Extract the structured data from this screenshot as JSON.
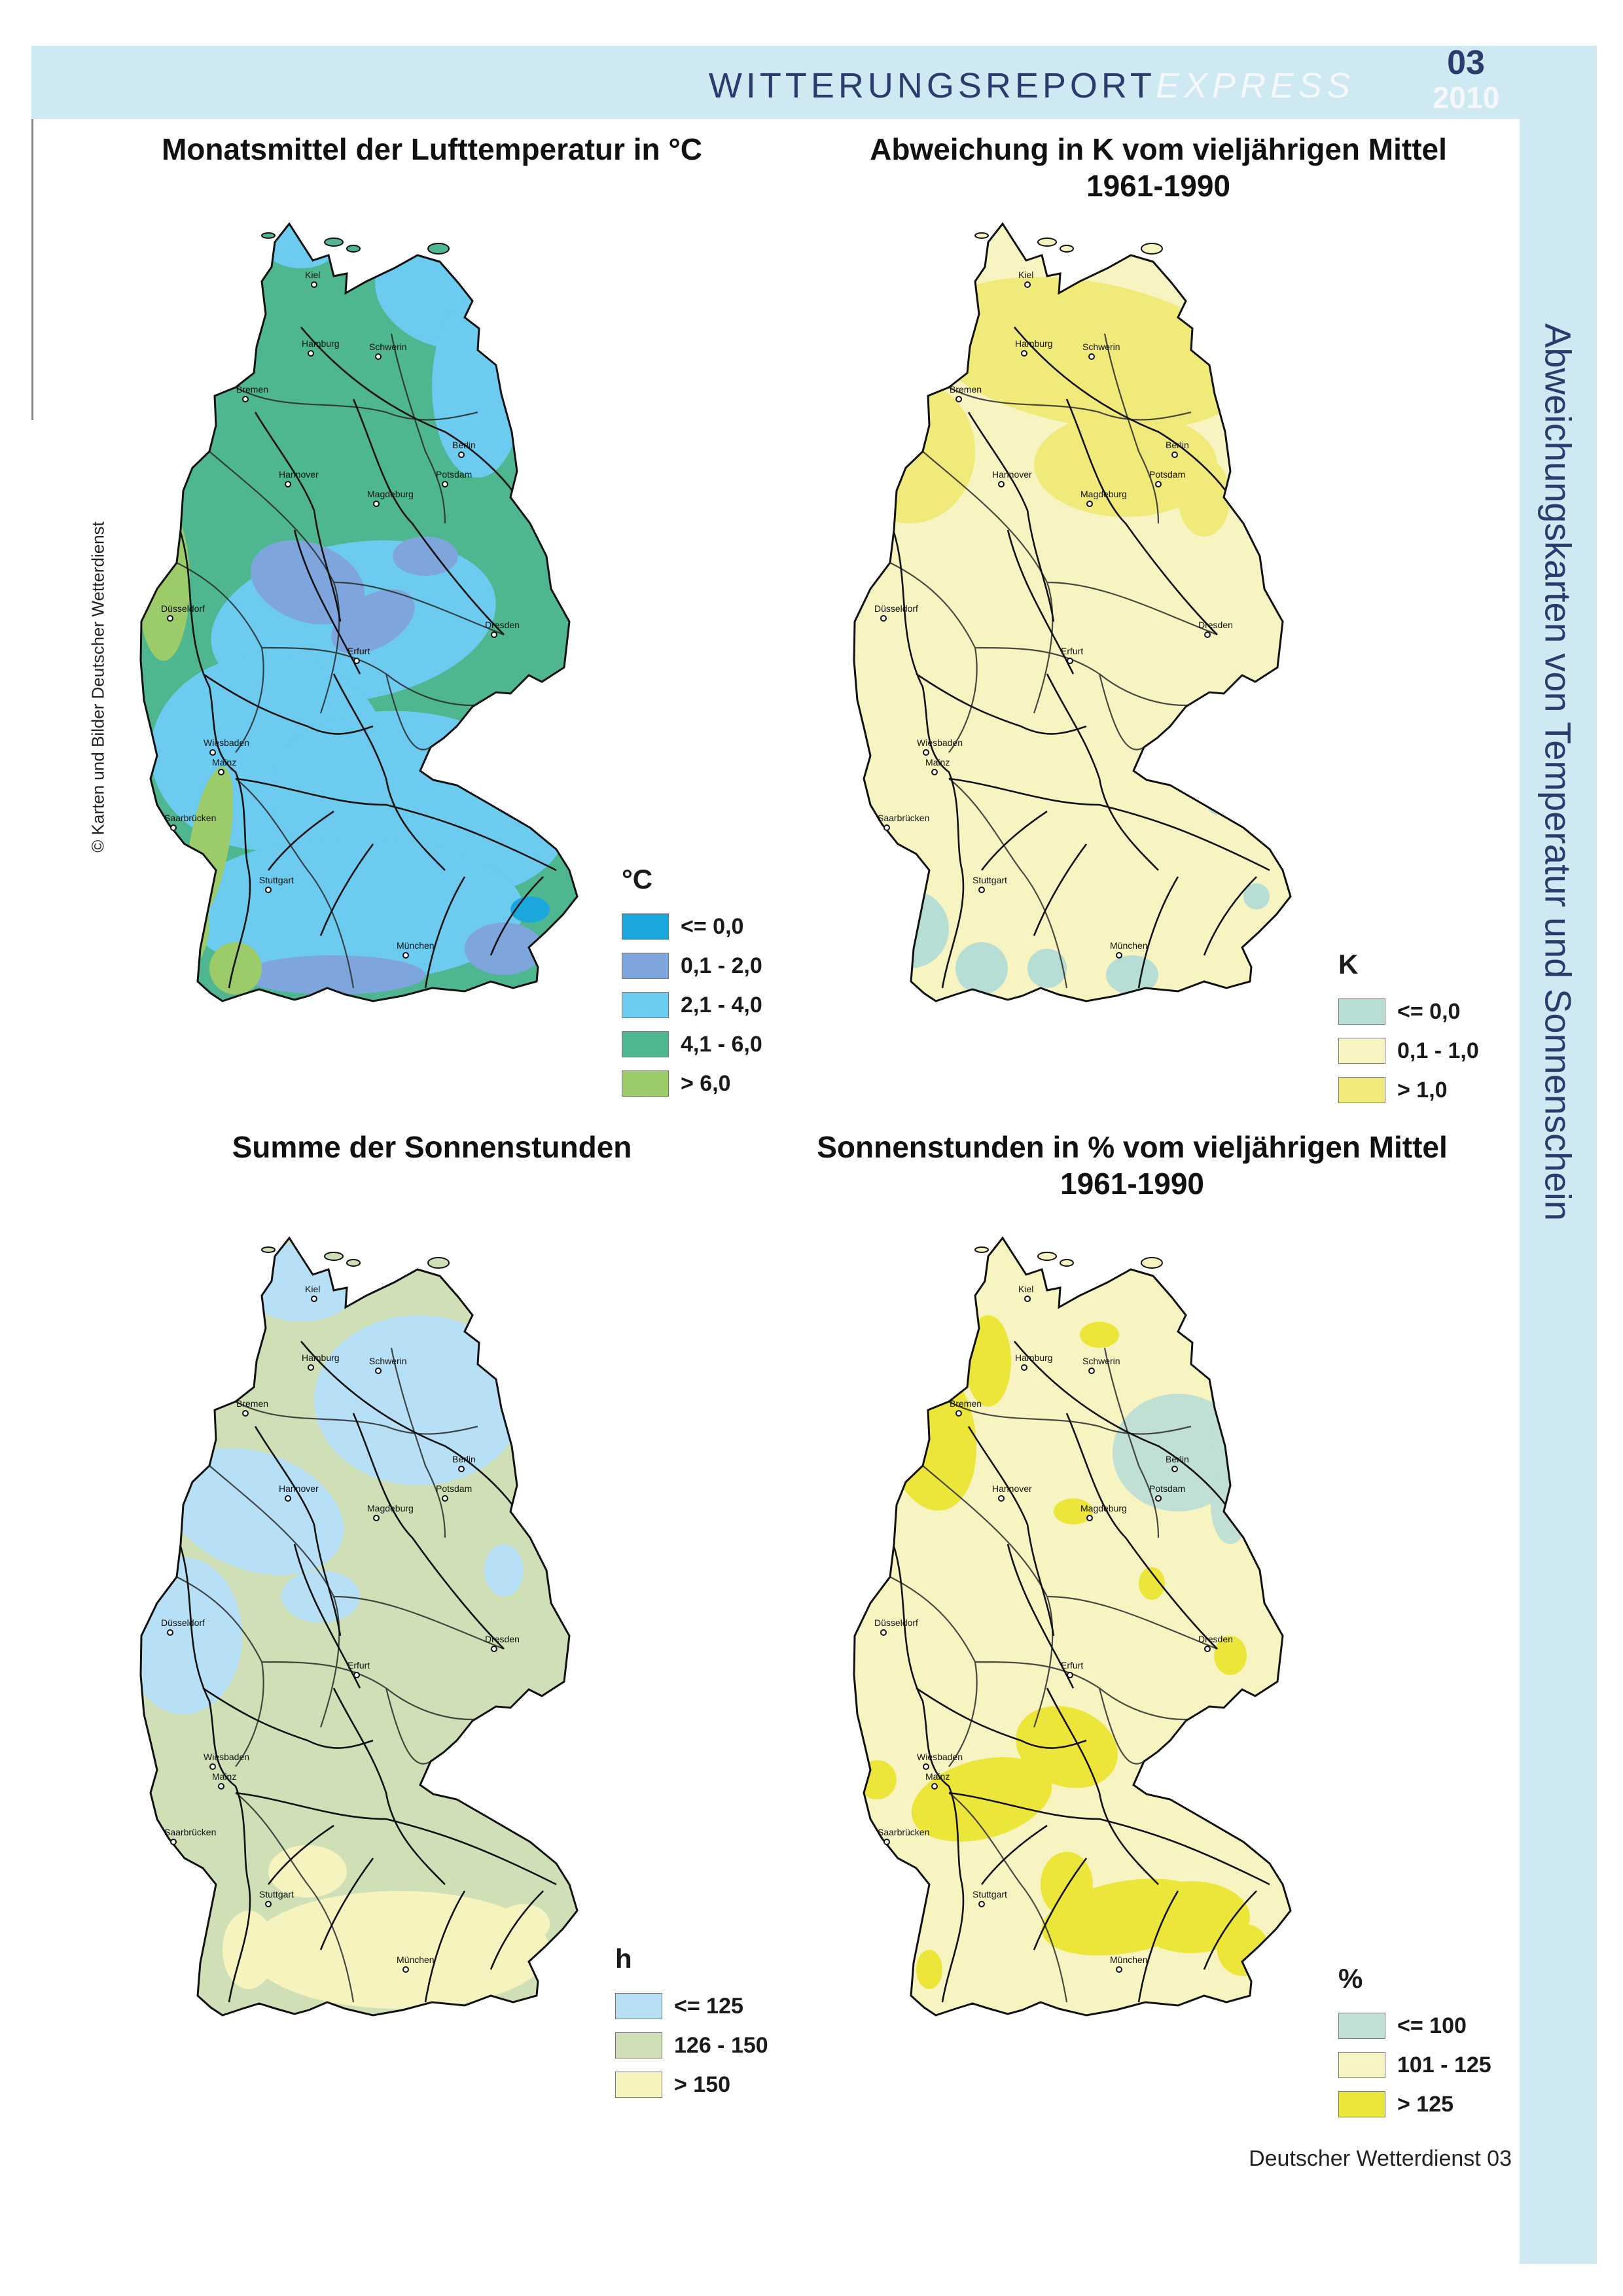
{
  "header": {
    "title_main": "WITTERUNGSREPORT",
    "title_suffix": "EXPRESS",
    "issue_number": "03",
    "issue_year": "2010"
  },
  "side_title": "Abweichungskarten von Temperatur und Sonnenschein",
  "copyright": "© Karten und Bilder Deutscher Wetterdienst",
  "footer": "Deutscher Wetterdienst  03",
  "cities": [
    "Kiel",
    "Hamburg",
    "Schwerin",
    "Bremen",
    "Berlin",
    "Potsdam",
    "Hannover",
    "Magdeburg",
    "Düsseldorf",
    "Dresden",
    "Erfurt",
    "Wiesbaden",
    "Mainz",
    "Saarbrücken",
    "Stuttgart",
    "München"
  ],
  "panels": [
    {
      "id": "temp",
      "title": "Monatsmittel der Lufttemperatur in °C",
      "legend_unit": "°C",
      "legend": [
        {
          "label": "<= 0,0",
          "color": "#1aa7dc"
        },
        {
          "label": "0,1 - 2,0",
          "color": "#7fa6dc"
        },
        {
          "label": "2,1 - 4,0",
          "color": "#6ccbee"
        },
        {
          "label": "4,1 - 6,0",
          "color": "#4fb78f"
        },
        {
          "label": "> 6,0",
          "color": "#9ccc6a"
        }
      ]
    },
    {
      "id": "temp_dev",
      "title_line1": "Abweichung in K vom vieljährigen Mittel",
      "title_line2": "1961-1990",
      "legend_unit": "K",
      "legend": [
        {
          "label": "<= 0,0",
          "color": "#b6ded4"
        },
        {
          "label": "0,1 - 1,0",
          "color": "#f7f4c2"
        },
        {
          "label": "> 1,0",
          "color": "#f0ea7a"
        }
      ]
    },
    {
      "id": "sun",
      "title": "Summe der Sonnenstunden",
      "legend_unit": "h",
      "legend": [
        {
          "label": "<= 125",
          "color": "#b7dff5"
        },
        {
          "label": "126 - 150",
          "color": "#cfe0b6"
        },
        {
          "label": "> 150",
          "color": "#f6f3bf"
        }
      ]
    },
    {
      "id": "sun_pct",
      "title_line1": "Sonnenstunden in % vom vieljährigen Mittel",
      "title_line2": "1961-1990",
      "legend_unit": "%",
      "legend": [
        {
          "label": "<= 100",
          "color": "#bfe0d2"
        },
        {
          "label": "101 - 125",
          "color": "#f7f4c2"
        },
        {
          "label": "> 125",
          "color": "#ede63a"
        }
      ]
    }
  ]
}
